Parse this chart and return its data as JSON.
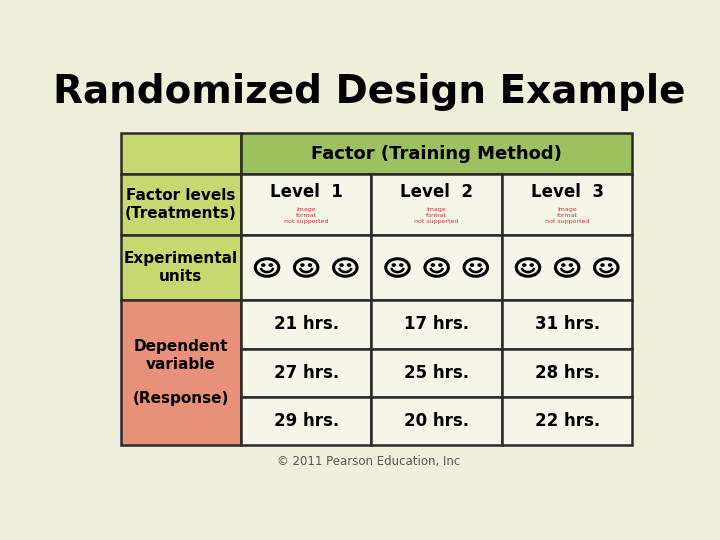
{
  "title": "Randomized Design Example",
  "title_fontsize": 28,
  "bg_color": "#f0efdc",
  "header_color": "#9dc060",
  "left_col_top_color": "#c8d870",
  "left_col_bottom_color": "#e8907a",
  "cell_bg_color": "#f5f5e8",
  "border_color": "#2a2a2a",
  "factor_header": "Factor (Training Method)",
  "level_labels": [
    "Level  1",
    "Level  2",
    "Level  3"
  ],
  "row_labels_top": [
    "Factor levels\n(Treatments)",
    "Experimental\nunits"
  ],
  "row_label_bottom": "Dependent\nvariable\n\n(Response)",
  "data": [
    [
      "21 hrs.",
      "17 hrs.",
      "31 hrs."
    ],
    [
      "27 hrs.",
      "25 hrs.",
      "28 hrs."
    ],
    [
      "29 hrs.",
      "20 hrs.",
      "22 hrs."
    ]
  ],
  "copyright": "© 2011 Pearson Education, Inc"
}
